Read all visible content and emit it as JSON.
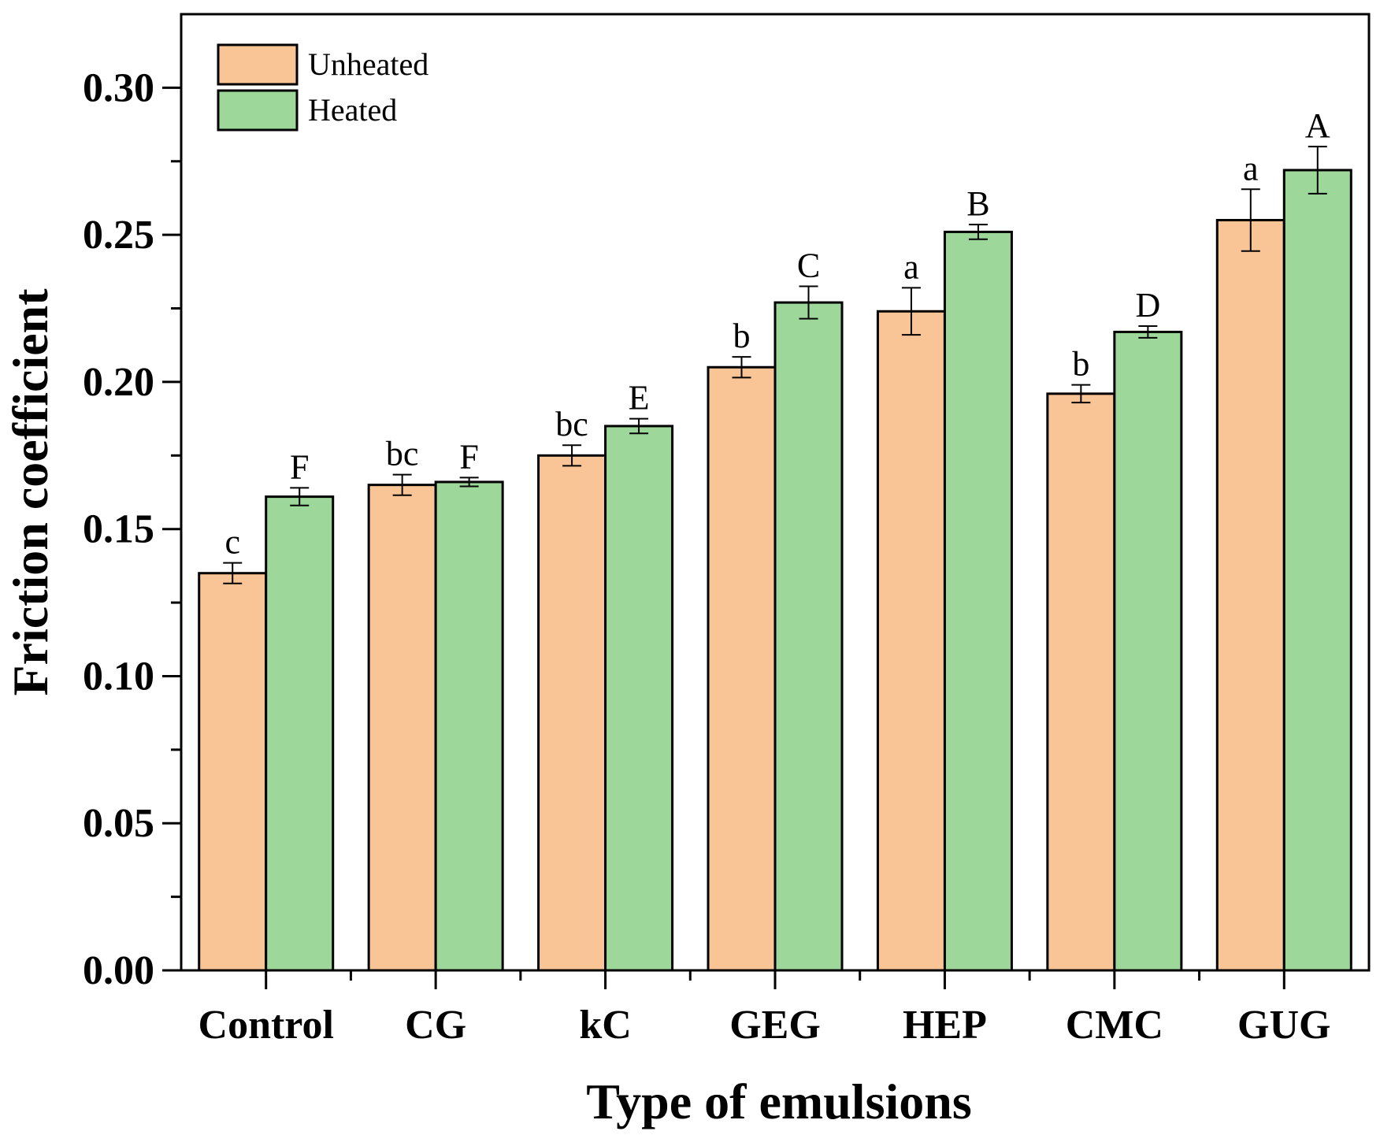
{
  "chart_data": {
    "type": "bar",
    "title": "",
    "xlabel": "Type of emulsions",
    "ylabel": "Friction coefficient",
    "ylim": [
      0,
      0.325
    ],
    "yticks": [
      0.0,
      0.05,
      0.1,
      0.15,
      0.2,
      0.25,
      0.3
    ],
    "ytick_labels": [
      "0.00",
      "0.05",
      "0.10",
      "0.15",
      "0.20",
      "0.25",
      "0.30"
    ],
    "categories": [
      "Control",
      "CG",
      "kC",
      "GEG",
      "HEP",
      "CMC",
      "GUG"
    ],
    "legend_position": "top-left",
    "series": [
      {
        "name": "Unheated",
        "color": "#F9C596",
        "values": [
          0.135,
          0.165,
          0.175,
          0.205,
          0.224,
          0.196,
          0.255
        ],
        "errors": [
          0.0035,
          0.0035,
          0.0035,
          0.0035,
          0.008,
          0.003,
          0.0105
        ],
        "labels": [
          "c",
          "bc",
          "bc",
          "b",
          "a",
          "b",
          "a"
        ]
      },
      {
        "name": "Heated",
        "color": "#9DD79A",
        "values": [
          0.161,
          0.166,
          0.185,
          0.227,
          0.251,
          0.217,
          0.272
        ],
        "errors": [
          0.003,
          0.0015,
          0.0025,
          0.0055,
          0.0025,
          0.002,
          0.008
        ],
        "labels": [
          "F",
          "F",
          "E",
          "C",
          "B",
          "D",
          "A"
        ]
      }
    ]
  }
}
